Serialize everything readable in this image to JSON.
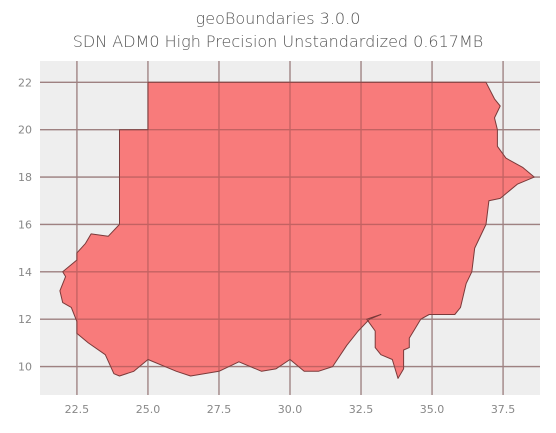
{
  "title": {
    "line1": "geoBoundaries 3.0.0",
    "line2": "SDN ADM0 High Precision Unstandardized 0.617MB"
  },
  "colors": {
    "background": "#eeeeee",
    "grid": "#b0b0b0",
    "fill": "#f87474",
    "outline": "#7a3a3a"
  },
  "chart_data": {
    "type": "map",
    "xlim": [
      21.2,
      38.8
    ],
    "ylim": [
      8.8,
      22.9
    ],
    "x_ticks": [
      22.5,
      25.0,
      27.5,
      30.0,
      32.5,
      35.0,
      37.5
    ],
    "x_tick_labels": [
      "22.5",
      "25.0",
      "27.5",
      "30.0",
      "32.5",
      "35.0",
      "37.5"
    ],
    "y_ticks": [
      10,
      12,
      14,
      16,
      18,
      20,
      22
    ],
    "y_tick_labels": [
      "10",
      "12",
      "14",
      "16",
      "18",
      "20",
      "22"
    ],
    "grid": true,
    "boundary": [
      [
        25.0,
        22.0
      ],
      [
        36.9,
        22.0
      ],
      [
        37.2,
        21.3
      ],
      [
        37.4,
        21.0
      ],
      [
        37.2,
        20.5
      ],
      [
        37.3,
        20.0
      ],
      [
        37.3,
        19.3
      ],
      [
        37.6,
        18.8
      ],
      [
        38.2,
        18.4
      ],
      [
        38.6,
        18.0
      ],
      [
        38.0,
        17.7
      ],
      [
        37.4,
        17.1
      ],
      [
        37.0,
        17.0
      ],
      [
        36.9,
        16.0
      ],
      [
        36.5,
        15.0
      ],
      [
        36.4,
        14.0
      ],
      [
        36.2,
        13.5
      ],
      [
        36.0,
        12.5
      ],
      [
        35.8,
        12.2
      ],
      [
        34.9,
        12.2
      ],
      [
        34.6,
        12.0
      ],
      [
        34.4,
        11.6
      ],
      [
        34.2,
        11.2
      ],
      [
        34.2,
        10.8
      ],
      [
        34.0,
        10.7
      ],
      [
        34.0,
        9.9
      ],
      [
        33.8,
        9.5
      ],
      [
        33.6,
        10.3
      ],
      [
        33.2,
        10.5
      ],
      [
        33.0,
        10.8
      ],
      [
        33.0,
        11.5
      ],
      [
        32.7,
        12.0
      ],
      [
        33.2,
        12.2
      ],
      [
        32.8,
        12.0
      ],
      [
        32.4,
        11.5
      ],
      [
        32.0,
        10.9
      ],
      [
        31.5,
        10.0
      ],
      [
        31.0,
        9.8
      ],
      [
        30.5,
        9.8
      ],
      [
        30.0,
        10.3
      ],
      [
        29.5,
        9.9
      ],
      [
        29.0,
        9.8
      ],
      [
        28.2,
        10.2
      ],
      [
        27.5,
        9.8
      ],
      [
        26.5,
        9.6
      ],
      [
        26.0,
        9.8
      ],
      [
        25.0,
        10.3
      ],
      [
        24.5,
        9.8
      ],
      [
        24.0,
        9.6
      ],
      [
        23.8,
        9.7
      ],
      [
        23.5,
        10.5
      ],
      [
        22.9,
        11.0
      ],
      [
        22.5,
        11.4
      ],
      [
        22.5,
        11.9
      ],
      [
        22.3,
        12.5
      ],
      [
        22.0,
        12.7
      ],
      [
        21.9,
        13.2
      ],
      [
        22.1,
        13.8
      ],
      [
        22.0,
        14.0
      ],
      [
        22.5,
        14.5
      ],
      [
        22.5,
        14.8
      ],
      [
        22.8,
        15.2
      ],
      [
        23.0,
        15.6
      ],
      [
        23.6,
        15.5
      ],
      [
        24.0,
        16.0
      ],
      [
        24.0,
        20.0
      ],
      [
        25.0,
        20.0
      ]
    ]
  }
}
